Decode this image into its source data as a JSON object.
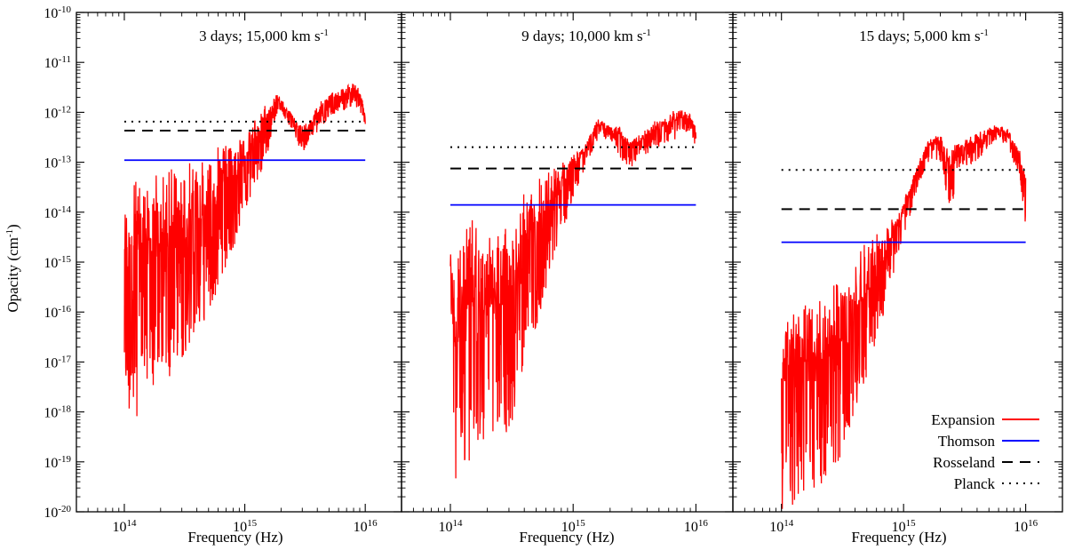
{
  "figure": {
    "ylabel_main": "Opacity (cm",
    "ylabel_sup": "-1",
    "ylabel_end": ")"
  },
  "legend": {
    "position": "bottom-right of third panel",
    "items": [
      {
        "label": "Expansion",
        "color": "#ff0000",
        "style": "solid"
      },
      {
        "label": "Thomson",
        "color": "#0000ff",
        "style": "solid"
      },
      {
        "label": "Rosseland",
        "color": "#000000",
        "style": "dashed"
      },
      {
        "label": "Planck",
        "color": "#000000",
        "style": "dotted"
      }
    ]
  },
  "chart_data": [
    {
      "type": "line",
      "title_main": "3 days; 15,000 km s",
      "title_sup": "-1",
      "xlabel": "Frequency (Hz)",
      "xscale": "log",
      "yscale": "log",
      "xlim": [
        40000000000000.0,
        2e+16
      ],
      "ylim": [
        1e-20,
        1e-10
      ],
      "x_ticks": [
        "14",
        "15",
        "16"
      ],
      "y_ticks": [
        "-20",
        "-19",
        "-18",
        "-17",
        "-16",
        "-15",
        "-14",
        "-13",
        "-12",
        "-11",
        "-10"
      ],
      "series": [
        {
          "name": "Expansion",
          "kind": "envelope",
          "x": [
            100000000000000.0,
            120000000000000.0,
            150000000000000.0,
            200000000000000.0,
            300000000000000.0,
            500000000000000.0,
            700000000000000.0,
            1000000000000000.0,
            1500000000000000.0,
            1800000000000000.0,
            2000000000000000.0,
            2500000000000000.0,
            3000000000000000.0,
            3500000000000000.0,
            4000000000000000.0,
            5000000000000000.0,
            6000000000000000.0,
            7000000000000000.0,
            8000000000000000.0,
            9000000000000000.0,
            1e+16
          ],
          "y_low": [
            2e-18,
            5e-19,
            3e-18,
            3e-18,
            1e-17,
            8e-17,
            6e-16,
            1e-14,
            1e-13,
            8e-13,
            1e-12,
            4e-13,
            1.5e-13,
            3e-13,
            4e-13,
            8e-13,
            1e-12,
            1e-12,
            1.5e-12,
            1e-12,
            5e-13
          ],
          "y_high": [
            4e-14,
            6e-14,
            8e-14,
            1e-13,
            1.5e-13,
            2e-13,
            3e-13,
            4e-13,
            1.5e-12,
            2.5e-12,
            2e-12,
            9e-13,
            6e-13,
            8e-13,
            1.5e-12,
            2.5e-12,
            3e-12,
            3.5e-12,
            4.5e-12,
            3e-12,
            1e-12
          ]
        },
        {
          "name": "Thomson",
          "x": [
            100000000000000.0,
            1e+16
          ],
          "y": [
            1.1e-13,
            1.1e-13
          ]
        },
        {
          "name": "Rosseland",
          "x": [
            100000000000000.0,
            1e+16
          ],
          "y": [
            4.3e-13,
            4.3e-13
          ]
        },
        {
          "name": "Planck",
          "x": [
            100000000000000.0,
            1e+16
          ],
          "y": [
            6.5e-13,
            6.5e-13
          ]
        }
      ]
    },
    {
      "type": "line",
      "title_main": "9 days; 10,000 km s",
      "title_sup": "-1",
      "xlabel": "Frequency (Hz)",
      "xscale": "log",
      "yscale": "log",
      "xlim": [
        40000000000000.0,
        2e+16
      ],
      "ylim": [
        1e-20,
        1e-10
      ],
      "x_ticks": [
        "14",
        "15",
        "16"
      ],
      "series": [
        {
          "name": "Expansion",
          "kind": "envelope",
          "x": [
            100000000000000.0,
            110000000000000.0,
            130000000000000.0,
            150000000000000.0,
            200000000000000.0,
            300000000000000.0,
            400000000000000.0,
            500000000000000.0,
            700000000000000.0,
            1000000000000000.0,
            1300000000000000.0,
            1600000000000000.0,
            2000000000000000.0,
            2500000000000000.0,
            3000000000000000.0,
            4000000000000000.0,
            5000000000000000.0,
            6000000000000000.0,
            7000000000000000.0,
            8000000000000000.0,
            9000000000000000.0,
            1e+16
          ],
          "y_low": [
            2e-16,
            1.5e-20,
            1e-19,
            1e-19,
            3e-19,
            3e-19,
            1e-17,
            5e-17,
            1e-15,
            2e-14,
            1e-13,
            3e-13,
            3e-13,
            1e-13,
            8e-14,
            1.5e-13,
            2e-13,
            2.5e-13,
            3e-13,
            4e-13,
            4e-13,
            2e-13
          ],
          "y_high": [
            2e-15,
            1e-15,
            8e-15,
            1e-14,
            3e-15,
            8e-15,
            3e-14,
            6e-14,
            1e-13,
            1.5e-13,
            3e-13,
            8e-13,
            6e-13,
            5e-13,
            3e-13,
            5e-13,
            8e-13,
            1e-12,
            1.2e-12,
            1.2e-12,
            1e-12,
            6e-13
          ]
        },
        {
          "name": "Thomson",
          "x": [
            100000000000000.0,
            1e+16
          ],
          "y": [
            1.4e-14,
            1.4e-14
          ]
        },
        {
          "name": "Rosseland",
          "x": [
            100000000000000.0,
            1e+16
          ],
          "y": [
            7.5e-14,
            7.5e-14
          ]
        },
        {
          "name": "Planck",
          "x": [
            100000000000000.0,
            1e+16
          ],
          "y": [
            2e-13,
            2e-13
          ]
        }
      ]
    },
    {
      "type": "line",
      "title_main": "15 days; 5,000 km s",
      "title_sup": "-1",
      "xlabel": "Frequency (Hz)",
      "xscale": "log",
      "yscale": "log",
      "xlim": [
        40000000000000.0,
        2e+16
      ],
      "ylim": [
        1e-20,
        1e-10
      ],
      "x_ticks": [
        "14",
        "15",
        "16"
      ],
      "series": [
        {
          "name": "Expansion",
          "kind": "envelope",
          "x": [
            100000000000000.0,
            120000000000000.0,
            150000000000000.0,
            200000000000000.0,
            300000000000000.0,
            500000000000000.0,
            700000000000000.0,
            1000000000000000.0,
            1300000000000000.0,
            1600000000000000.0,
            2000000000000000.0,
            2400000000000000.0,
            3000000000000000.0,
            4000000000000000.0,
            5000000000000000.0,
            6000000000000000.0,
            7000000000000000.0,
            8000000000000000.0,
            9000000000000000.0,
            1e+16
          ],
          "y_low": [
            1e-20,
            1e-20,
            2e-20,
            3e-20,
            1e-19,
            5e-18,
            1e-16,
            3e-15,
            3e-14,
            1e-13,
            1e-13,
            1e-14,
            8e-14,
            1e-13,
            2e-13,
            3e-13,
            2e-13,
            1e-13,
            5e-14,
            4e-15
          ],
          "y_high": [
            2e-16,
            1e-16,
            3e-16,
            2e-16,
            5e-16,
            3e-15,
            5e-15,
            2e-14,
            1e-13,
            3e-13,
            4e-13,
            2e-13,
            3e-13,
            4e-13,
            5e-13,
            6e-13,
            5e-13,
            3e-13,
            2e-13,
            1e-13
          ]
        },
        {
          "name": "Thomson",
          "x": [
            100000000000000.0,
            1e+16
          ],
          "y": [
            2.5e-15,
            2.5e-15
          ]
        },
        {
          "name": "Rosseland",
          "x": [
            100000000000000.0,
            1e+16
          ],
          "y": [
            1.15e-14,
            1.15e-14
          ]
        },
        {
          "name": "Planck",
          "x": [
            100000000000000.0,
            1e+16
          ],
          "y": [
            7e-14,
            7e-14
          ]
        }
      ]
    }
  ]
}
